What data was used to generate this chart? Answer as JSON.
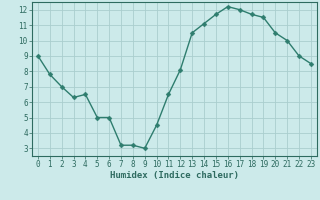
{
  "x": [
    0,
    1,
    2,
    3,
    4,
    5,
    6,
    7,
    8,
    9,
    10,
    11,
    12,
    13,
    14,
    15,
    16,
    17,
    18,
    19,
    20,
    21,
    22,
    23
  ],
  "y": [
    9.0,
    7.8,
    7.0,
    6.3,
    6.5,
    5.0,
    5.0,
    3.2,
    3.2,
    3.0,
    4.5,
    6.5,
    8.1,
    10.5,
    11.1,
    11.7,
    12.2,
    12.0,
    11.7,
    11.5,
    10.5,
    10.0,
    9.0,
    8.5
  ],
  "line_color": "#2e7d6e",
  "marker": "D",
  "markersize": 2.5,
  "linewidth": 1.0,
  "bg_color": "#cceaea",
  "grid_color": "#aacece",
  "xlabel": "Humidex (Indice chaleur)",
  "xlim": [
    -0.5,
    23.5
  ],
  "ylim": [
    2.5,
    12.5
  ],
  "xticks": [
    0,
    1,
    2,
    3,
    4,
    5,
    6,
    7,
    8,
    9,
    10,
    11,
    12,
    13,
    14,
    15,
    16,
    17,
    18,
    19,
    20,
    21,
    22,
    23
  ],
  "yticks": [
    3,
    4,
    5,
    6,
    7,
    8,
    9,
    10,
    11,
    12
  ],
  "tick_fontsize": 5.5,
  "xlabel_fontsize": 6.5,
  "axis_color": "#2e6b60",
  "spine_color": "#2e6b60"
}
